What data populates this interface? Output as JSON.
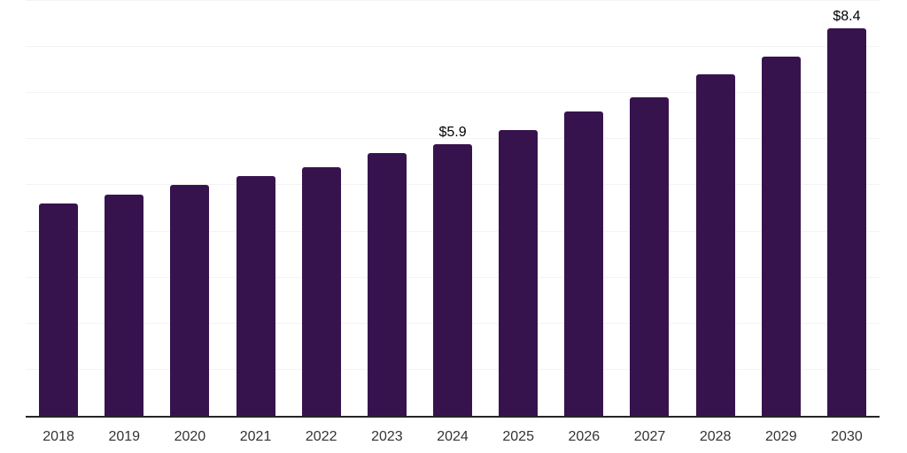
{
  "chart_data": {
    "type": "bar",
    "title": "",
    "xlabel": "",
    "ylabel": "",
    "categories": [
      "2018",
      "2019",
      "2020",
      "2021",
      "2022",
      "2023",
      "2024",
      "2025",
      "2026",
      "2027",
      "2028",
      "2029",
      "2030"
    ],
    "values": [
      4.6,
      4.8,
      5.0,
      5.2,
      5.4,
      5.7,
      5.9,
      6.2,
      6.6,
      6.9,
      7.4,
      7.8,
      8.4
    ],
    "data_labels": [
      "",
      "",
      "",
      "",
      "",
      "",
      "$5.9",
      "",
      "",
      "",
      "",
      "",
      "$8.4"
    ],
    "ylim": [
      0,
      9
    ],
    "gridline_step": 1,
    "grid": "horizontal-only",
    "legend": "none",
    "colors": {
      "bar": "#37134E",
      "grid": "#f3f3f3",
      "axis": "#262626",
      "tick_label": "#333333",
      "value_label": "#000000",
      "background": "#ffffff"
    }
  }
}
